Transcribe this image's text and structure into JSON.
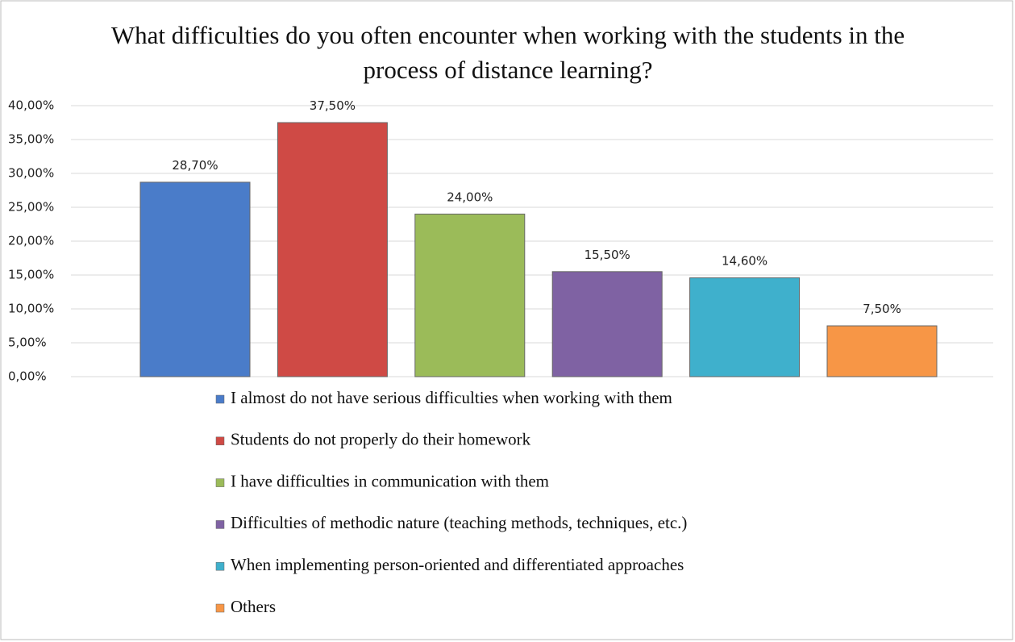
{
  "chart_data": {
    "type": "bar",
    "title": "What difficulties do you often encounter when working with the students in the process of distance learning?",
    "categories": [
      null
    ],
    "series": [
      {
        "name": "I almost do not have serious difficulties when working with them",
        "color": "#4a7cc9",
        "values": [
          28.7
        ],
        "value_labels": [
          "28,70%"
        ]
      },
      {
        "name": "Students do not properly do their homework",
        "color": "#cf4a45",
        "values": [
          37.5
        ],
        "value_labels": [
          "37,50%"
        ]
      },
      {
        "name": "I have difficulties in communication with them",
        "color": "#9bbb59",
        "values": [
          24.0
        ],
        "value_labels": [
          "24,00%"
        ]
      },
      {
        "name": "Difficulties of methodic nature (teaching methods, techniques, etc.)",
        "color": "#7f62a3",
        "values": [
          15.5
        ],
        "value_labels": [
          "15,50%"
        ]
      },
      {
        "name": "When implementing person-oriented and differentiated approaches",
        "color": "#3fb0cc",
        "values": [
          14.6
        ],
        "value_labels": [
          "14,60%"
        ]
      },
      {
        "name": "Others",
        "color": "#f79646",
        "values": [
          7.5
        ],
        "value_labels": [
          "7,50%"
        ]
      }
    ],
    "ylim": [
      0,
      40
    ],
    "yticks": [
      {
        "value": 0,
        "label": "0,00%"
      },
      {
        "value": 5,
        "label": "5,00%"
      },
      {
        "value": 10,
        "label": "10,00%"
      },
      {
        "value": 15,
        "label": "15,00%"
      },
      {
        "value": 20,
        "label": "20,00%"
      },
      {
        "value": 25,
        "label": "25,00%"
      },
      {
        "value": 30,
        "label": "30,00%"
      },
      {
        "value": 35,
        "label": "35,00%"
      },
      {
        "value": 40,
        "label": "40,00%"
      }
    ],
    "grid": true
  }
}
